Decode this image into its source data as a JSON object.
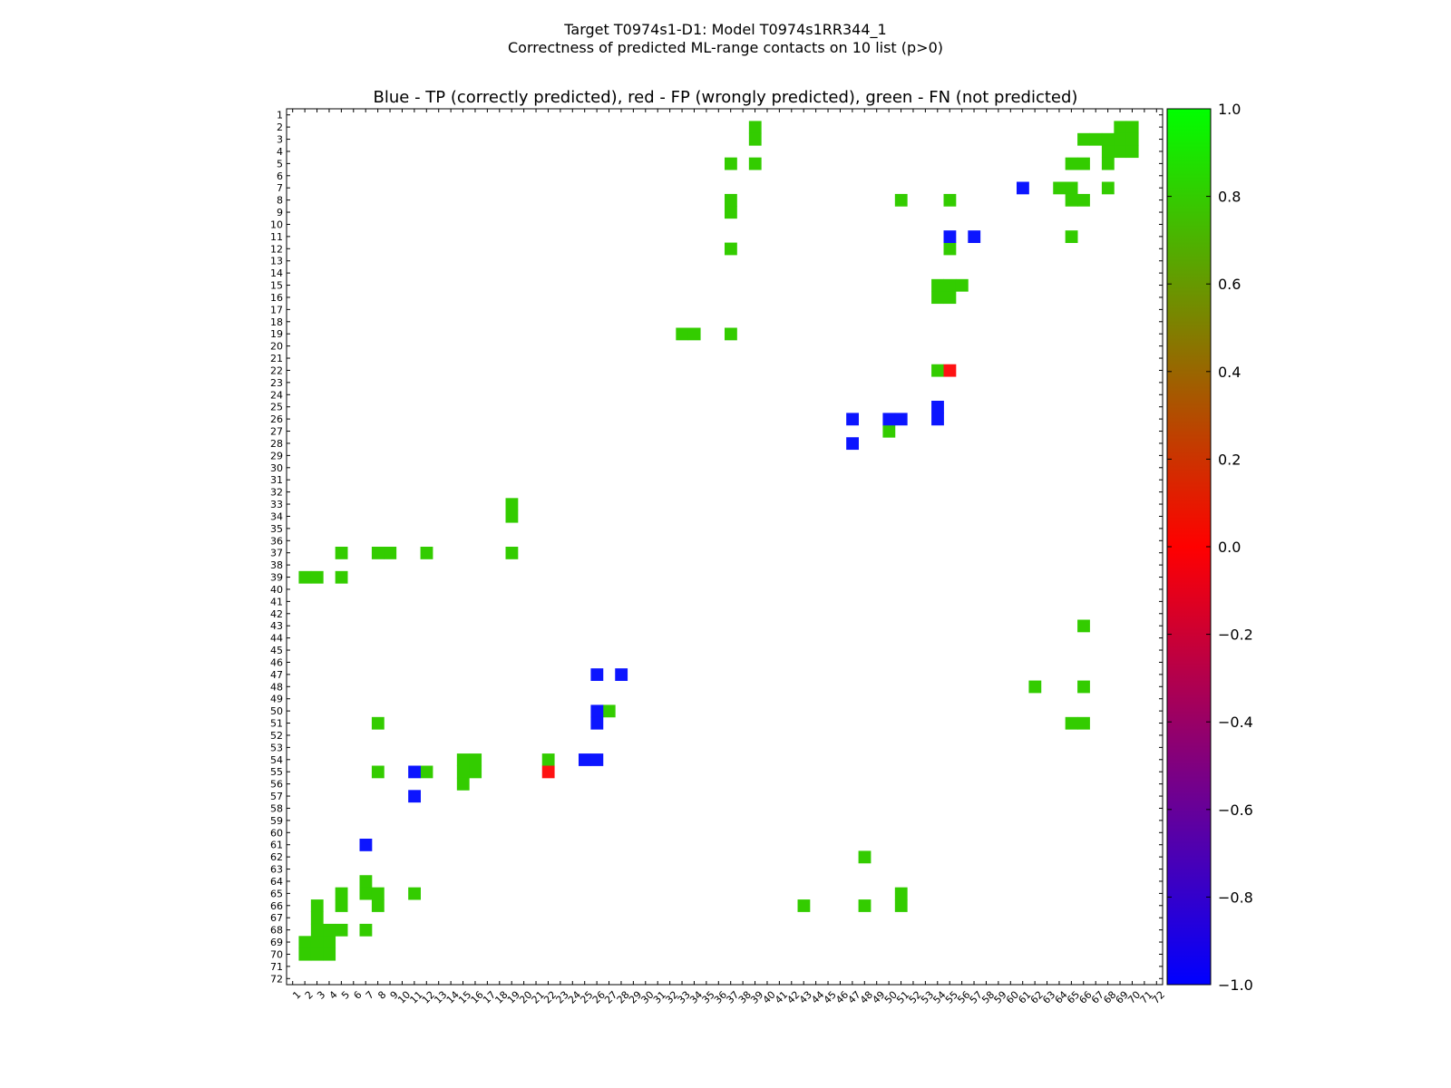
{
  "figure": {
    "title_line1": "Target T0974s1-D1: Model T0974s1RR344_1",
    "title_line2": "Correctness of predicted ML-range contacts on 10 list (p>0)"
  },
  "chart_data": {
    "type": "heatmap",
    "title": "Blue - TP (correctly predicted), red - FP (wrongly predicted), green - FN (not predicted)",
    "x_range": [
      1,
      72
    ],
    "y_range": [
      1,
      72
    ],
    "x_tick_labels": [
      "1",
      "2",
      "3",
      "4",
      "5",
      "6",
      "7",
      "8",
      "9",
      "10",
      "11",
      "12",
      "13",
      "14",
      "15",
      "16",
      "17",
      "18",
      "19",
      "20",
      "21",
      "22",
      "23",
      "24",
      "25",
      "26",
      "27",
      "28",
      "29",
      "30",
      "31",
      "32",
      "33",
      "34",
      "35",
      "36",
      "37",
      "38",
      "39",
      "40",
      "41",
      "42",
      "43",
      "44",
      "45",
      "46",
      "47",
      "48",
      "49",
      "50",
      "51",
      "52",
      "53",
      "54",
      "55",
      "56",
      "57",
      "58",
      "59",
      "60",
      "61",
      "62",
      "63",
      "64",
      "65",
      "66",
      "67",
      "68",
      "69",
      "70",
      "71",
      "72"
    ],
    "y_tick_labels": [
      "1",
      "2",
      "3",
      "4",
      "5",
      "6",
      "7",
      "8",
      "9",
      "10",
      "11",
      "12",
      "13",
      "14",
      "15",
      "16",
      "17",
      "18",
      "19",
      "20",
      "21",
      "22",
      "23",
      "24",
      "25",
      "26",
      "27",
      "28",
      "29",
      "30",
      "31",
      "32",
      "33",
      "34",
      "35",
      "36",
      "37",
      "38",
      "39",
      "40",
      "41",
      "42",
      "43",
      "44",
      "45",
      "46",
      "47",
      "48",
      "49",
      "50",
      "51",
      "52",
      "53",
      "54",
      "55",
      "56",
      "57",
      "58",
      "59",
      "60",
      "61",
      "62",
      "63",
      "64",
      "65",
      "66",
      "67",
      "68",
      "69",
      "70",
      "71",
      "72"
    ],
    "colorbar": {
      "min": -1.0,
      "max": 1.0,
      "ticks": [
        1.0,
        0.8,
        0.6,
        0.4,
        0.2,
        0.0,
        -0.2,
        -0.4,
        -0.6,
        -0.8,
        -1.0
      ],
      "tick_labels": [
        "1.0",
        "0.8",
        "0.6",
        "0.4",
        "0.2",
        "0.0",
        "−0.2",
        "−0.4",
        "−0.6",
        "−0.8",
        "−1.0"
      ],
      "stops": [
        "#0000ff",
        "#ff0000",
        "#00ff00"
      ]
    },
    "legend": {
      "tp": {
        "label": "TP (correctly predicted)",
        "value": -1.0,
        "color": "#0c15ff"
      },
      "fp": {
        "label": "FP (wrongly predicted)",
        "value": 0.0,
        "color": "#fe1212"
      },
      "fn": {
        "label": "FN (not predicted)",
        "value": 0.8,
        "color": "#33cc00"
      }
    },
    "cells": {
      "fn": [
        [
          69,
          2
        ],
        [
          70,
          2
        ],
        [
          69,
          3
        ],
        [
          70,
          3
        ],
        [
          66,
          3
        ],
        [
          67,
          3
        ],
        [
          68,
          3
        ],
        [
          68,
          4
        ],
        [
          69,
          4
        ],
        [
          70,
          4
        ],
        [
          65,
          5
        ],
        [
          66,
          5
        ],
        [
          68,
          5
        ],
        [
          64,
          7
        ],
        [
          65,
          7
        ],
        [
          68,
          7
        ],
        [
          65,
          8
        ],
        [
          66,
          8
        ],
        [
          39,
          2
        ],
        [
          39,
          3
        ],
        [
          37,
          5
        ],
        [
          39,
          5
        ],
        [
          37,
          8
        ],
        [
          37,
          9
        ],
        [
          37,
          12
        ],
        [
          37,
          19
        ],
        [
          33,
          19
        ],
        [
          34,
          19
        ],
        [
          51,
          8
        ],
        [
          55,
          8
        ],
        [
          65,
          11
        ],
        [
          55,
          12
        ],
        [
          54,
          15
        ],
        [
          55,
          15
        ],
        [
          56,
          15
        ],
        [
          54,
          16
        ],
        [
          55,
          16
        ],
        [
          54,
          22
        ],
        [
          50,
          27
        ],
        [
          19,
          33
        ],
        [
          19,
          34
        ],
        [
          19,
          37
        ],
        [
          5,
          37
        ],
        [
          8,
          37
        ],
        [
          9,
          37
        ],
        [
          12,
          37
        ],
        [
          2,
          39
        ],
        [
          3,
          39
        ],
        [
          5,
          39
        ],
        [
          66,
          43
        ],
        [
          62,
          48
        ],
        [
          66,
          48
        ],
        [
          65,
          51
        ],
        [
          66,
          51
        ],
        [
          27,
          50
        ],
        [
          8,
          51
        ],
        [
          22,
          54
        ],
        [
          15,
          54
        ],
        [
          16,
          54
        ],
        [
          15,
          55
        ],
        [
          16,
          55
        ],
        [
          12,
          55
        ],
        [
          8,
          55
        ],
        [
          15,
          56
        ],
        [
          48,
          62
        ],
        [
          7,
          64
        ],
        [
          5,
          65
        ],
        [
          7,
          65
        ],
        [
          8,
          65
        ],
        [
          11,
          65
        ],
        [
          51,
          65
        ],
        [
          3,
          66
        ],
        [
          5,
          66
        ],
        [
          8,
          66
        ],
        [
          43,
          66
        ],
        [
          48,
          66
        ],
        [
          51,
          66
        ],
        [
          3,
          67
        ],
        [
          3,
          68
        ],
        [
          4,
          68
        ],
        [
          5,
          68
        ],
        [
          7,
          68
        ],
        [
          2,
          69
        ],
        [
          3,
          69
        ],
        [
          4,
          69
        ],
        [
          2,
          70
        ],
        [
          3,
          70
        ],
        [
          4,
          70
        ]
      ],
      "tp": [
        [
          61,
          7
        ],
        [
          55,
          11
        ],
        [
          57,
          11
        ],
        [
          54,
          25
        ],
        [
          54,
          26
        ],
        [
          47,
          26
        ],
        [
          50,
          26
        ],
        [
          51,
          26
        ],
        [
          47,
          28
        ],
        [
          26,
          47
        ],
        [
          28,
          47
        ],
        [
          26,
          50
        ],
        [
          26,
          51
        ],
        [
          25,
          54
        ],
        [
          26,
          54
        ],
        [
          11,
          55
        ],
        [
          11,
          57
        ],
        [
          7,
          61
        ]
      ],
      "fp": [
        [
          55,
          22
        ],
        [
          22,
          55
        ]
      ]
    }
  }
}
